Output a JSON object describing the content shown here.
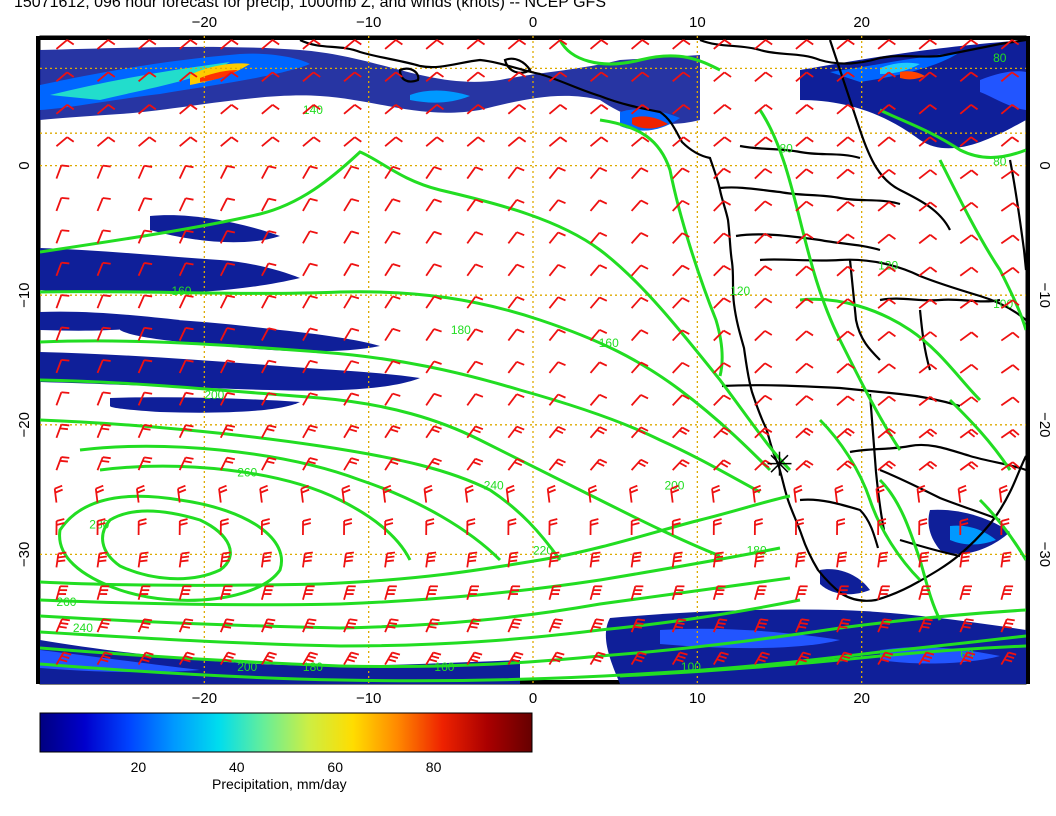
{
  "title": "15071612, 096 hour forecast for precip, 1000mb Z, and winds (knots) -- NCEP GFS",
  "map": {
    "lon_range": [
      -30,
      30
    ],
    "lat_range": [
      -40,
      10
    ],
    "lon_ticks": [
      {
        "value": -20,
        "label": "−20"
      },
      {
        "value": -10,
        "label": "−10"
      },
      {
        "value": 0,
        "label": "0"
      },
      {
        "value": 10,
        "label": "10"
      },
      {
        "value": 20,
        "label": "20"
      }
    ],
    "lat_ticks": [
      {
        "value": 0,
        "label": "0"
      },
      {
        "value": -10,
        "label": "−10"
      },
      {
        "value": -20,
        "label": "−20"
      },
      {
        "value": -30,
        "label": "−30"
      }
    ],
    "gridlines": true,
    "contour_color": "#22dd22",
    "barb_color": "#ee1111",
    "contour_labels": [
      {
        "lon": -14,
        "lat": 4,
        "text": "140"
      },
      {
        "lon": -22,
        "lat": -10,
        "text": "160"
      },
      {
        "lon": -5,
        "lat": -13,
        "text": "180"
      },
      {
        "lon": 4,
        "lat": -14,
        "text": "160"
      },
      {
        "lon": 12,
        "lat": -10,
        "text": "120"
      },
      {
        "lon": -20,
        "lat": -18,
        "text": "200"
      },
      {
        "lon": -18,
        "lat": -24,
        "text": "260"
      },
      {
        "lon": -27,
        "lat": -28,
        "text": "280"
      },
      {
        "lon": -3,
        "lat": -25,
        "text": "240"
      },
      {
        "lon": 8,
        "lat": -25,
        "text": "200"
      },
      {
        "lon": 0,
        "lat": -30,
        "text": "220"
      },
      {
        "lon": 13,
        "lat": -30,
        "text": "180"
      },
      {
        "lon": -29,
        "lat": -34,
        "text": "260"
      },
      {
        "lon": -28,
        "lat": -36,
        "text": "240"
      },
      {
        "lon": -18,
        "lat": -39,
        "text": "200"
      },
      {
        "lon": -14,
        "lat": -39,
        "text": "180"
      },
      {
        "lon": -6,
        "lat": -39,
        "text": "160"
      },
      {
        "lon": 9,
        "lat": -39,
        "text": "100"
      },
      {
        "lon": 26,
        "lat": -38,
        "text": "60"
      },
      {
        "lon": 15,
        "lat": 1,
        "text": "80"
      },
      {
        "lon": 21,
        "lat": -8,
        "text": "120"
      },
      {
        "lon": 28,
        "lat": -11,
        "text": "100"
      },
      {
        "lon": 28,
        "lat": 0,
        "text": "80"
      },
      {
        "lon": 28,
        "lat": 8,
        "text": "80"
      }
    ],
    "marker": {
      "lon": 15,
      "lat": -23,
      "symbol": "star"
    }
  },
  "colorbar": {
    "label": "Precipitation, mm/day",
    "range": [
      0,
      100
    ],
    "ticks": [
      {
        "value": 20,
        "label": "20"
      },
      {
        "value": 40,
        "label": "40"
      },
      {
        "value": 60,
        "label": "60"
      },
      {
        "value": 80,
        "label": "80"
      }
    ],
    "colors": [
      "#000080",
      "#0000cc",
      "#0044ff",
      "#0099ff",
      "#00ddee",
      "#66ee99",
      "#ccee44",
      "#ffdd00",
      "#ff8800",
      "#ee2200",
      "#aa0000",
      "#660000"
    ]
  }
}
